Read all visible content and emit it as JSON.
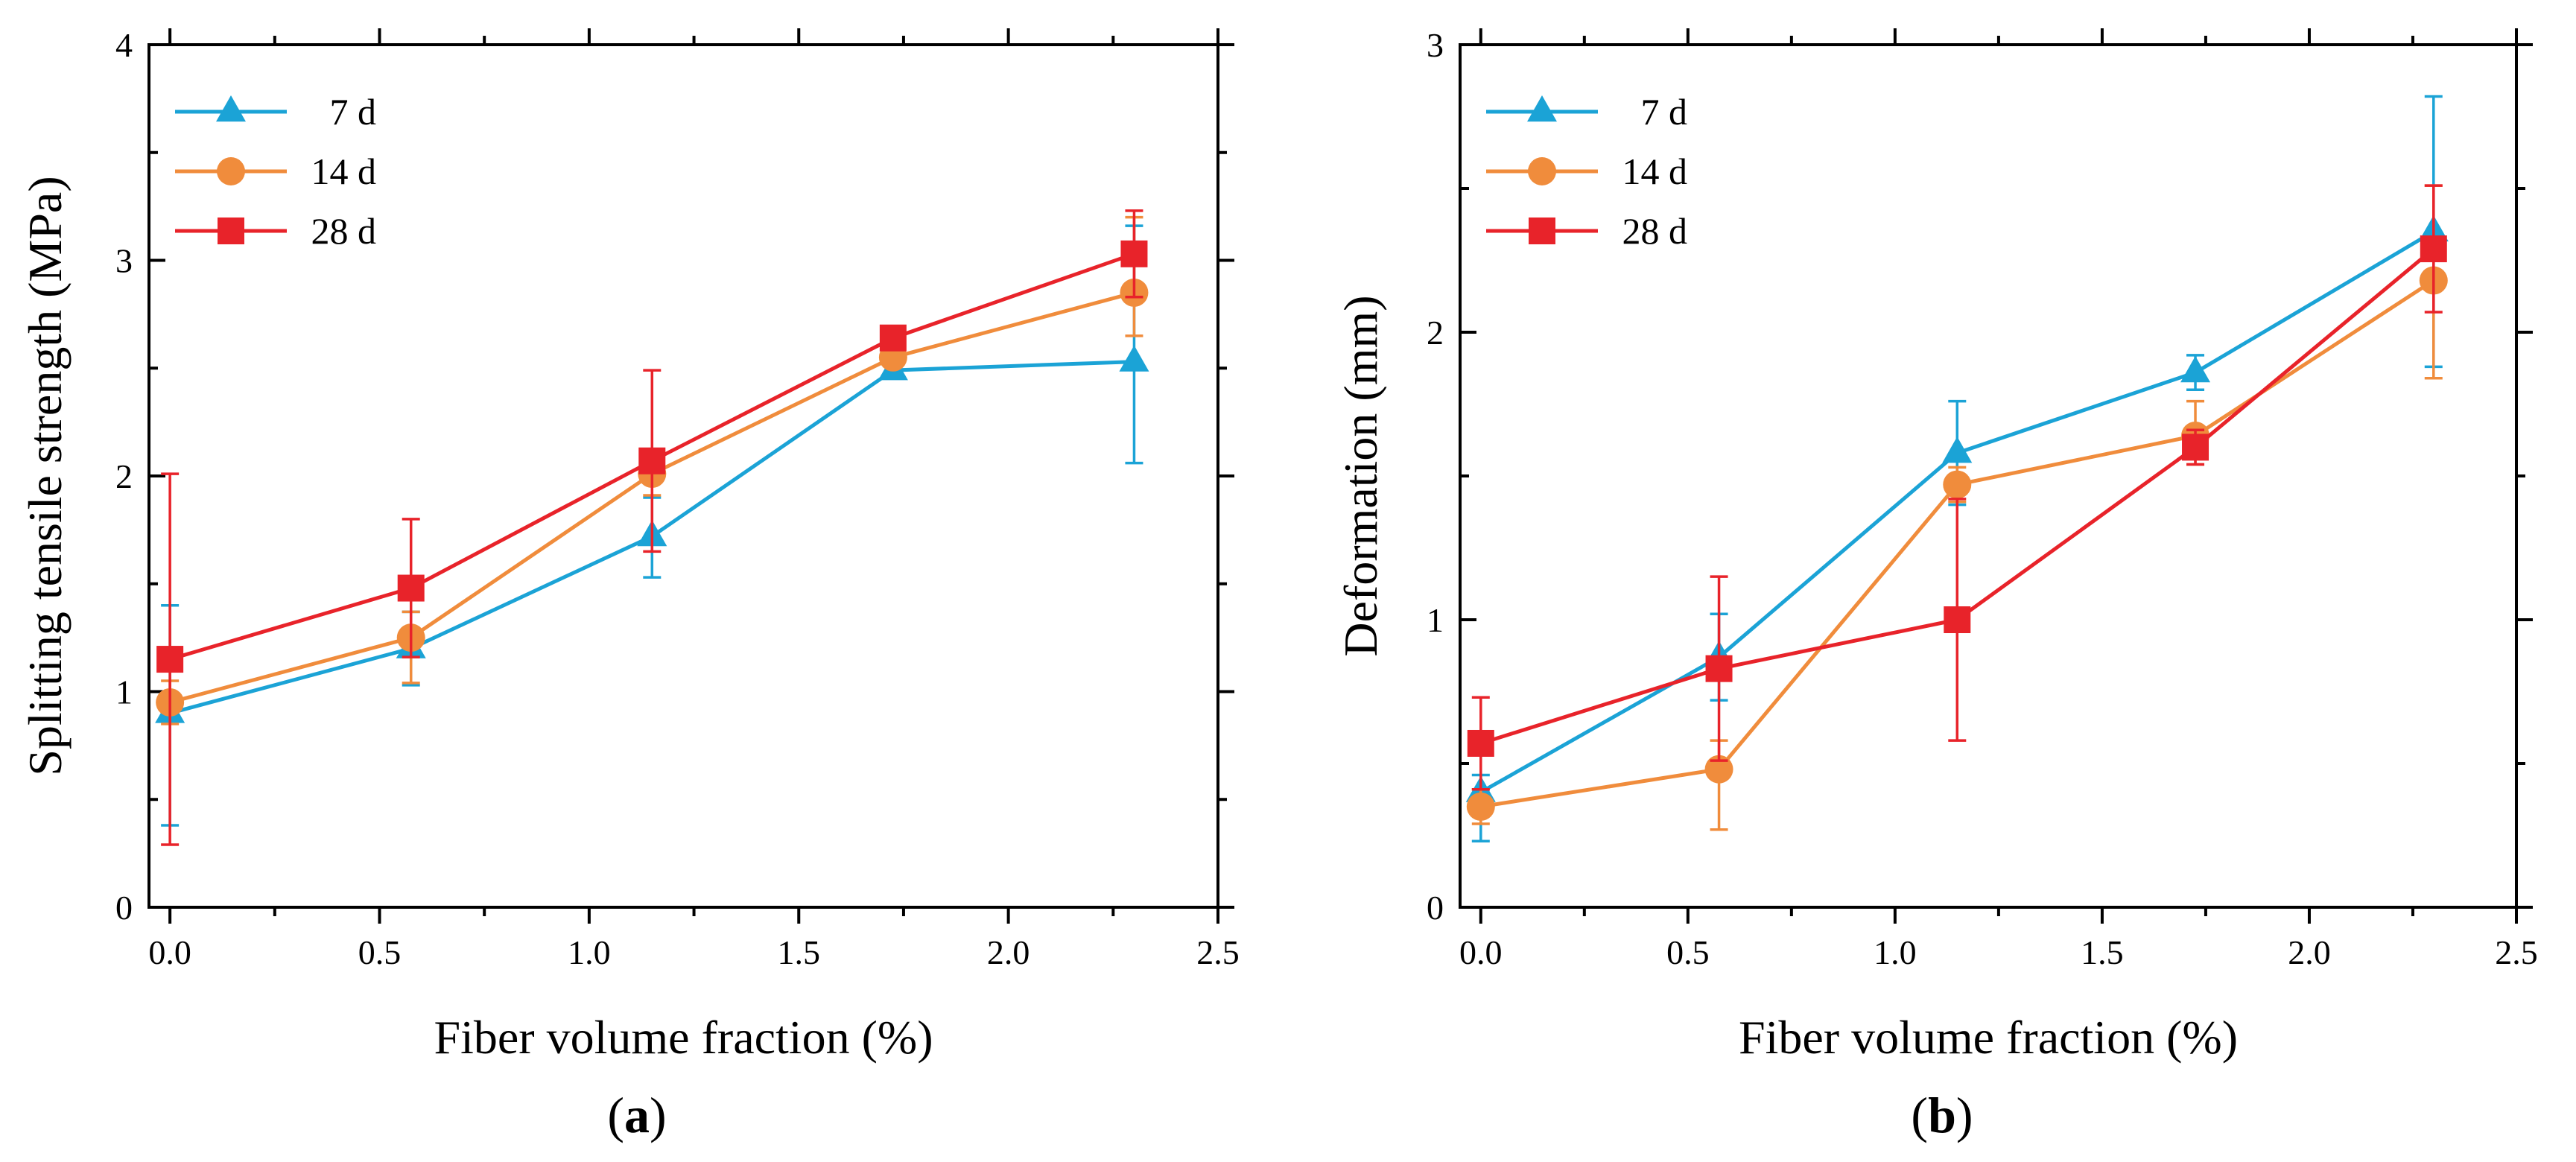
{
  "chart_data": [
    {
      "type": "line",
      "panel_label": "a",
      "xlabel": "Fiber volume fraction (%)",
      "ylabel": "Splitting tensile strength (MPa)",
      "xlim": [
        -0.05,
        2.5
      ],
      "ylim": [
        0,
        4
      ],
      "xticks": [
        "0.0",
        "0.5",
        "1.0",
        "1.5",
        "2.0",
        "2.5"
      ],
      "yticks": [
        "0",
        "1",
        "2",
        "3",
        "4"
      ],
      "x": [
        0,
        0.575,
        1.15,
        1.725,
        2.3
      ],
      "legend_position": "top-left",
      "series": [
        {
          "name": "7 d",
          "color": "#1BA3D6",
          "marker": "triangle",
          "values": [
            0.9,
            1.2,
            1.72,
            2.49,
            2.53
          ],
          "err_upper": [
            0.5,
            0.17,
            0.18,
            0.03,
            0.63
          ],
          "err_lower": [
            0.52,
            0.17,
            0.19,
            0.03,
            0.47
          ]
        },
        {
          "name": "14 d",
          "color": "#F08C3C",
          "marker": "circle",
          "values": [
            0.95,
            1.25,
            2.01,
            2.55,
            2.85
          ],
          "err_upper": [
            0.1,
            0.12,
            0.1,
            0.03,
            0.35
          ],
          "err_lower": [
            0.1,
            0.21,
            0.1,
            0.03,
            0.2
          ]
        },
        {
          "name": "28 d",
          "color": "#E8232A",
          "marker": "square",
          "values": [
            1.15,
            1.48,
            2.07,
            2.64,
            3.03
          ],
          "err_upper": [
            0.86,
            0.32,
            0.42,
            0.03,
            0.2
          ],
          "err_lower": [
            0.86,
            0.32,
            0.42,
            0.03,
            0.2
          ]
        }
      ]
    },
    {
      "type": "line",
      "panel_label": "b",
      "xlabel": "Fiber volume fraction (%)",
      "ylabel": "Deformation (mm)",
      "xlim": [
        -0.05,
        2.5
      ],
      "ylim": [
        0,
        3
      ],
      "xticks": [
        "0.0",
        "0.5",
        "1.0",
        "1.5",
        "2.0",
        "2.5"
      ],
      "yticks": [
        "0",
        "1",
        "2",
        "3"
      ],
      "x": [
        0,
        0.575,
        1.15,
        1.725,
        2.3
      ],
      "legend_position": "top-left",
      "series": [
        {
          "name": "7 d",
          "color": "#1BA3D6",
          "marker": "triangle",
          "values": [
            0.4,
            0.87,
            1.58,
            1.86,
            2.35
          ],
          "err_upper": [
            0.06,
            0.15,
            0.18,
            0.06,
            0.47
          ],
          "err_lower": [
            0.17,
            0.15,
            0.18,
            0.06,
            0.47
          ]
        },
        {
          "name": "14 d",
          "color": "#F08C3C",
          "marker": "circle",
          "values": [
            0.35,
            0.48,
            1.47,
            1.64,
            2.18
          ],
          "err_upper": [
            0.06,
            0.1,
            0.06,
            0.12,
            0.33
          ],
          "err_lower": [
            0.06,
            0.21,
            0.06,
            0.1,
            0.34
          ]
        },
        {
          "name": "28 d",
          "color": "#E8232A",
          "marker": "square",
          "values": [
            0.57,
            0.83,
            1.0,
            1.6,
            2.29
          ],
          "err_upper": [
            0.16,
            0.32,
            0.42,
            0.06,
            0.22
          ],
          "err_lower": [
            0.16,
            0.32,
            0.42,
            0.06,
            0.22
          ]
        }
      ]
    }
  ]
}
